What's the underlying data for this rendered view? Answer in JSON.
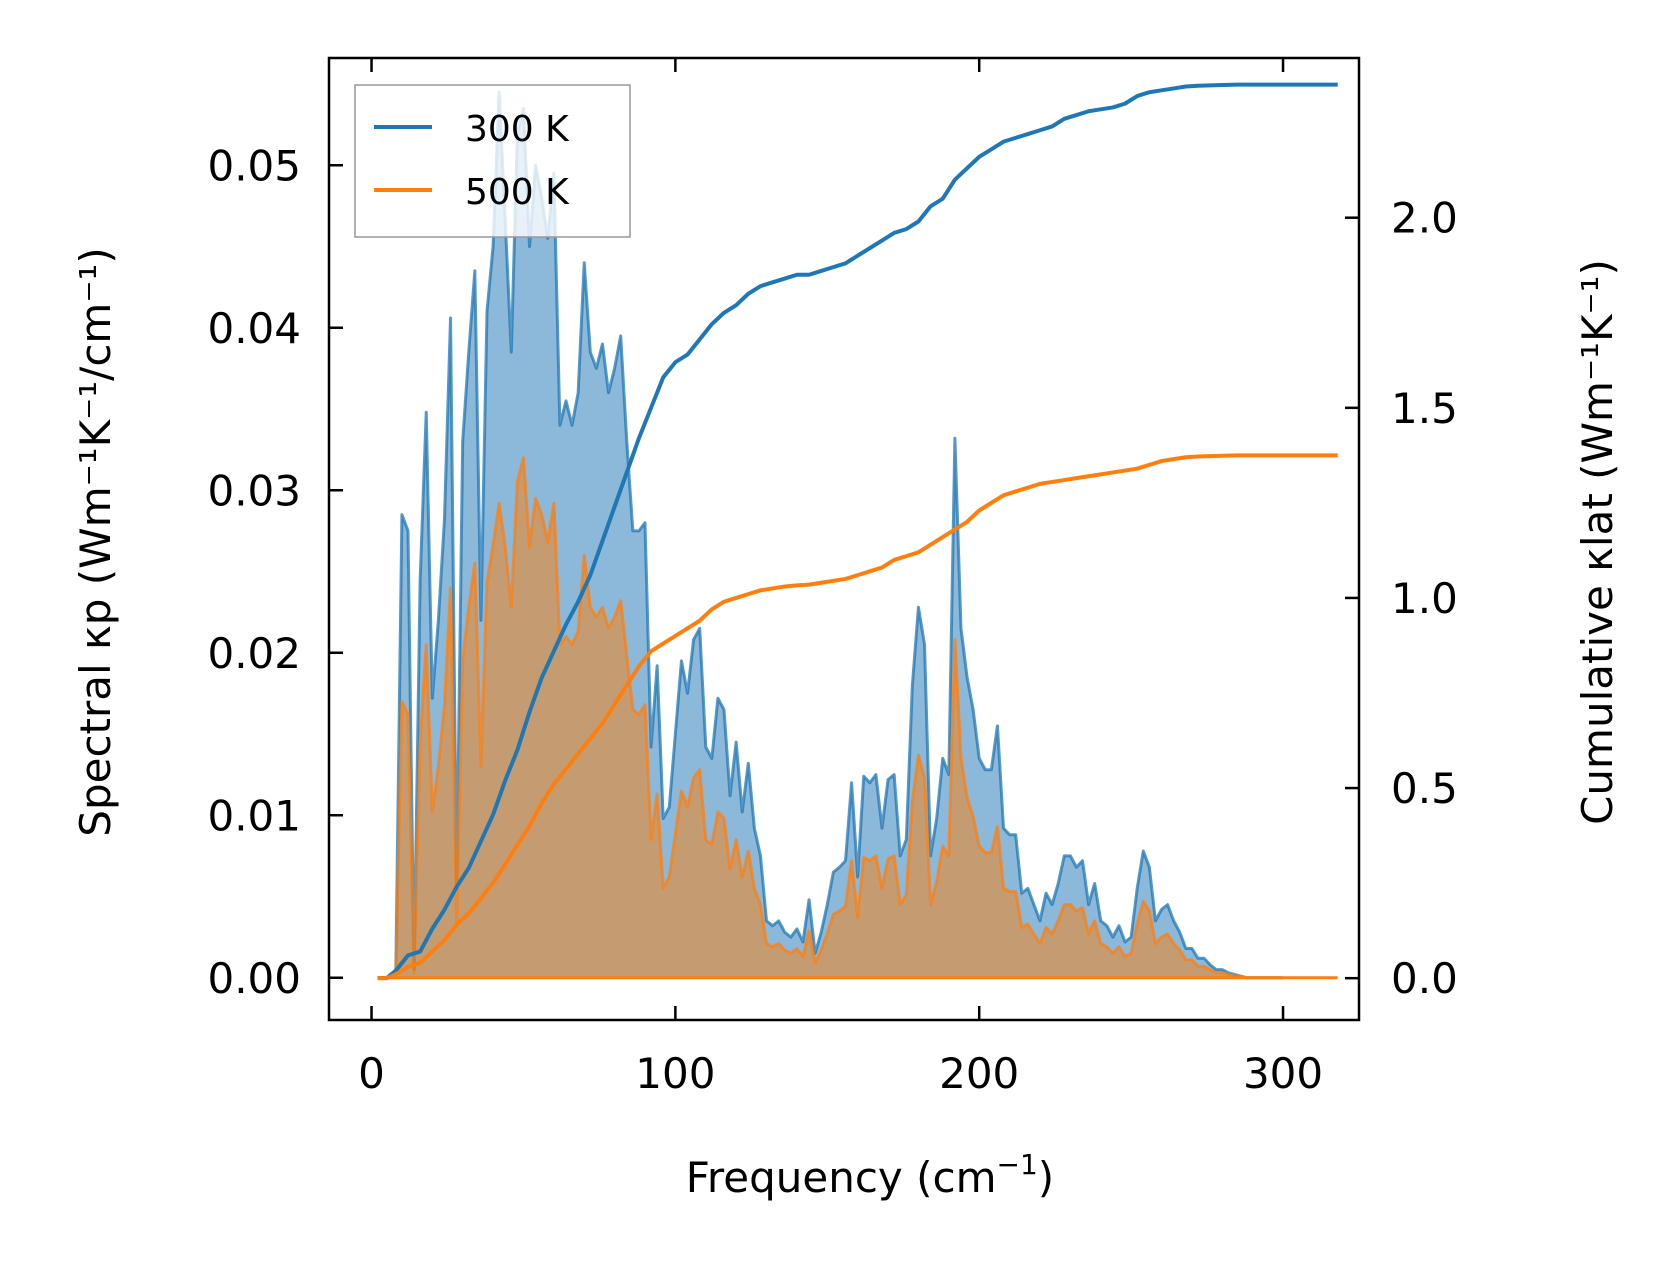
{
  "chart_data": {
    "type": "line",
    "xlabel": "Frequency (cm",
    "xlabel_sup": "−1",
    "xlabel_tail": ")",
    "ylabel_left": "Spectral κp (Wm⁻¹K⁻¹/cm⁻¹)",
    "ylabel_right": "Cumulative κlat (Wm⁻¹K⁻¹)",
    "xlim": [
      -14,
      325
    ],
    "ylim_left": [
      -0.0026,
      0.0566
    ],
    "ylim_right": [
      -0.11,
      2.42
    ],
    "xticks": [
      0,
      100,
      200,
      300
    ],
    "xtick_labels": [
      "0",
      "100",
      "200",
      "300"
    ],
    "yticks_left": [
      0.0,
      0.01,
      0.02,
      0.03,
      0.04,
      0.05
    ],
    "ytick_left_labels": [
      "0.00",
      "0.01",
      "0.02",
      "0.03",
      "0.04",
      "0.05"
    ],
    "yticks_right": [
      0.0,
      0.5,
      1.0,
      1.5,
      2.0
    ],
    "ytick_right_labels": [
      "0.0",
      "0.5",
      "1.0",
      "1.5",
      "2.0"
    ],
    "legend": {
      "location": "top-left",
      "entries": [
        "300 K",
        "500 K"
      ]
    },
    "colors": {
      "300 K": "#1f77b4",
      "500 K": "#ff7f0e",
      "fill_300": "#8cb8da",
      "fill_500": "#c8996b"
    },
    "spectral": {
      "x": [
        2,
        6,
        8,
        10,
        12,
        14,
        16,
        18,
        20,
        22,
        24,
        26,
        28,
        30,
        32,
        34,
        36,
        38,
        40,
        42,
        44,
        46,
        48,
        50,
        52,
        54,
        56,
        58,
        60,
        62,
        64,
        66,
        68,
        70,
        72,
        74,
        76,
        78,
        80,
        82,
        84,
        86,
        88,
        90,
        92,
        94,
        96,
        98,
        100,
        102,
        104,
        106,
        108,
        110,
        112,
        114,
        116,
        118,
        120,
        122,
        124,
        126,
        128,
        130,
        132,
        134,
        136,
        138,
        140,
        142,
        144,
        146,
        148,
        150,
        152,
        154,
        156,
        158,
        160,
        162,
        164,
        166,
        168,
        170,
        172,
        174,
        176,
        178,
        180,
        182,
        184,
        186,
        188,
        190,
        192,
        194,
        196,
        198,
        200,
        202,
        204,
        206,
        208,
        210,
        212,
        214,
        216,
        218,
        220,
        222,
        224,
        226,
        228,
        230,
        232,
        234,
        236,
        238,
        240,
        242,
        244,
        246,
        248,
        250,
        252,
        254,
        256,
        258,
        260,
        262,
        264,
        266,
        268,
        270,
        272,
        274,
        276,
        278,
        280,
        282,
        284,
        286,
        288,
        290,
        300,
        318
      ],
      "series": [
        {
          "name": "300 K",
          "values": [
            0,
            0,
            0.0005,
            0.0285,
            0.0275,
            0.0005,
            0.0245,
            0.0348,
            0.0172,
            0.022,
            0.0282,
            0.0406,
            0.0055,
            0.033,
            0.0385,
            0.0435,
            0.022,
            0.041,
            0.045,
            0.0545,
            0.0466,
            0.0385,
            0.052,
            0.0535,
            0.045,
            0.05,
            0.048,
            0.0455,
            0.0495,
            0.034,
            0.0355,
            0.034,
            0.036,
            0.044,
            0.0385,
            0.0375,
            0.039,
            0.036,
            0.0375,
            0.0395,
            0.033,
            0.0275,
            0.0275,
            0.028,
            0.0142,
            0.0192,
            0.0098,
            0.0105,
            0.015,
            0.0195,
            0.0175,
            0.0208,
            0.0215,
            0.0142,
            0.0135,
            0.0172,
            0.0165,
            0.0112,
            0.0145,
            0.0102,
            0.0132,
            0.0092,
            0.0075,
            0.0035,
            0.0032,
            0.0035,
            0.0028,
            0.0025,
            0.003,
            0.0022,
            0.0048,
            0.0015,
            0.0028,
            0.0045,
            0.0065,
            0.0068,
            0.0072,
            0.012,
            0.0062,
            0.0124,
            0.012,
            0.0125,
            0.0092,
            0.0122,
            0.0125,
            0.0075,
            0.0085,
            0.018,
            0.0228,
            0.0205,
            0.0075,
            0.0098,
            0.0135,
            0.0125,
            0.0332,
            0.0215,
            0.0185,
            0.0165,
            0.0135,
            0.0128,
            0.0128,
            0.0155,
            0.0092,
            0.0088,
            0.0088,
            0.0052,
            0.0055,
            0.0045,
            0.0035,
            0.0052,
            0.0045,
            0.0058,
            0.0075,
            0.0075,
            0.0068,
            0.0072,
            0.0045,
            0.0058,
            0.0035,
            0.0032,
            0.0025,
            0.0032,
            0.0022,
            0.0025,
            0.0055,
            0.0078,
            0.0068,
            0.0035,
            0.0042,
            0.0045,
            0.0035,
            0.0028,
            0.0018,
            0.0018,
            0.0012,
            0.0012,
            0.0008,
            0.0005,
            0.0005,
            0.0003,
            0.0002,
            0.0001,
            0,
            0,
            0
          ]
        },
        {
          "name": "500 K",
          "values": [
            0,
            0,
            0.0003,
            0.017,
            0.0162,
            0.0003,
            0.0145,
            0.0205,
            0.0102,
            0.013,
            0.0167,
            0.024,
            0.0032,
            0.0195,
            0.0228,
            0.0255,
            0.013,
            0.0243,
            0.0266,
            0.0292,
            0.0265,
            0.0228,
            0.0305,
            0.032,
            0.0265,
            0.0295,
            0.0285,
            0.0268,
            0.0292,
            0.0205,
            0.021,
            0.0205,
            0.0213,
            0.026,
            0.0228,
            0.0222,
            0.0228,
            0.0215,
            0.0222,
            0.0232,
            0.0198,
            0.0165,
            0.0162,
            0.0168,
            0.0085,
            0.0113,
            0.0055,
            0.0062,
            0.0088,
            0.0115,
            0.0105,
            0.0123,
            0.0128,
            0.0085,
            0.0082,
            0.0102,
            0.0098,
            0.0067,
            0.0085,
            0.0062,
            0.0078,
            0.0055,
            0.0045,
            0.0021,
            0.0019,
            0.0021,
            0.0017,
            0.0015,
            0.0018,
            0.0013,
            0.0029,
            0.0009,
            0.0017,
            0.0027,
            0.0039,
            0.0041,
            0.0044,
            0.0072,
            0.0037,
            0.0074,
            0.0072,
            0.0075,
            0.0055,
            0.0073,
            0.0075,
            0.0045,
            0.0051,
            0.0108,
            0.0137,
            0.0123,
            0.0045,
            0.0059,
            0.0081,
            0.0075,
            0.0208,
            0.0135,
            0.0111,
            0.0099,
            0.0081,
            0.0077,
            0.0077,
            0.0093,
            0.0055,
            0.0053,
            0.0053,
            0.0031,
            0.0033,
            0.0027,
            0.0021,
            0.0031,
            0.0027,
            0.0035,
            0.0045,
            0.0045,
            0.0041,
            0.0043,
            0.0027,
            0.0035,
            0.0021,
            0.0019,
            0.0015,
            0.0019,
            0.0013,
            0.0015,
            0.0033,
            0.0047,
            0.0041,
            0.0021,
            0.0025,
            0.0027,
            0.0021,
            0.0017,
            0.0011,
            0.0011,
            0.0007,
            0.0007,
            0.0005,
            0.0003,
            0.0003,
            0.0002,
            0.0001,
            0.0001,
            0,
            0,
            0
          ]
        }
      ]
    },
    "cumulative": {
      "x": [
        2,
        5,
        8,
        12,
        16,
        20,
        24,
        28,
        32,
        36,
        40,
        44,
        48,
        52,
        56,
        60,
        64,
        68,
        72,
        76,
        80,
        84,
        88,
        92,
        96,
        100,
        104,
        108,
        112,
        116,
        120,
        124,
        128,
        132,
        136,
        140,
        144,
        148,
        152,
        156,
        160,
        164,
        168,
        172,
        176,
        180,
        184,
        188,
        192,
        196,
        200,
        204,
        208,
        212,
        216,
        220,
        224,
        228,
        232,
        236,
        240,
        244,
        248,
        252,
        256,
        260,
        264,
        268,
        272,
        276,
        280,
        285,
        290,
        300,
        318
      ],
      "series": [
        {
          "name": "300 K",
          "values": [
            0,
            0,
            0.02,
            0.06,
            0.07,
            0.13,
            0.18,
            0.24,
            0.29,
            0.36,
            0.43,
            0.52,
            0.6,
            0.7,
            0.79,
            0.86,
            0.93,
            0.99,
            1.06,
            1.15,
            1.24,
            1.33,
            1.42,
            1.5,
            1.58,
            1.62,
            1.64,
            1.68,
            1.72,
            1.75,
            1.77,
            1.8,
            1.82,
            1.83,
            1.84,
            1.85,
            1.85,
            1.86,
            1.87,
            1.88,
            1.9,
            1.92,
            1.94,
            1.96,
            1.97,
            1.99,
            2.03,
            2.05,
            2.1,
            2.13,
            2.16,
            2.18,
            2.2,
            2.21,
            2.22,
            2.23,
            2.24,
            2.26,
            2.27,
            2.28,
            2.285,
            2.29,
            2.3,
            2.32,
            2.33,
            2.335,
            2.34,
            2.345,
            2.347,
            2.348,
            2.349,
            2.35,
            2.35,
            2.35,
            2.35
          ]
        },
        {
          "name": "500 K",
          "values": [
            0,
            0,
            0.01,
            0.03,
            0.04,
            0.07,
            0.1,
            0.14,
            0.17,
            0.21,
            0.25,
            0.3,
            0.35,
            0.4,
            0.46,
            0.51,
            0.55,
            0.59,
            0.63,
            0.67,
            0.72,
            0.77,
            0.82,
            0.86,
            0.88,
            0.9,
            0.92,
            0.94,
            0.97,
            0.99,
            1.0,
            1.01,
            1.02,
            1.025,
            1.03,
            1.033,
            1.035,
            1.04,
            1.045,
            1.05,
            1.06,
            1.07,
            1.08,
            1.1,
            1.11,
            1.12,
            1.14,
            1.16,
            1.18,
            1.2,
            1.23,
            1.25,
            1.27,
            1.28,
            1.29,
            1.3,
            1.305,
            1.31,
            1.315,
            1.32,
            1.325,
            1.33,
            1.335,
            1.34,
            1.35,
            1.36,
            1.365,
            1.37,
            1.372,
            1.373,
            1.374,
            1.375,
            1.375,
            1.375,
            1.375
          ]
        }
      ]
    }
  }
}
